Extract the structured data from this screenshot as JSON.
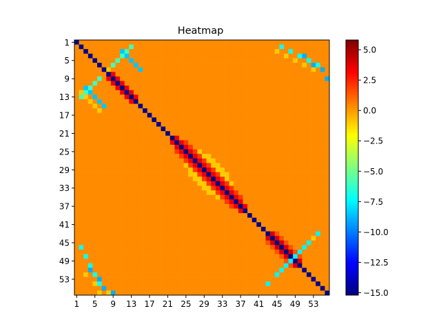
{
  "chart_data": {
    "type": "heatmap",
    "title": "Heatmap",
    "xlabel": "",
    "ylabel": "",
    "size": 56,
    "x_tick_labels": [
      "1",
      "5",
      "9",
      "13",
      "17",
      "21",
      "25",
      "29",
      "33",
      "37",
      "41",
      "45",
      "49",
      "53"
    ],
    "y_tick_labels": [
      "1",
      "5",
      "9",
      "13",
      "17",
      "21",
      "25",
      "29",
      "33",
      "37",
      "41",
      "45",
      "49",
      "53"
    ],
    "colorbar": {
      "colormap": "jet",
      "vmin": -15.2,
      "vmax": 5.8,
      "ticks": [
        5.0,
        2.5,
        0.0,
        -2.5,
        -5.0,
        -7.5,
        -10.0,
        -12.5,
        -15.0
      ],
      "tick_labels": [
        "5.0",
        "2.5",
        "0.0",
        "−2.5",
        "−5.0",
        "−7.5",
        "−10.0",
        "−12.5",
        "−15.0"
      ]
    },
    "background_value": 0.3,
    "diagonal_value": -15.0,
    "structure": {
      "upper_diagonal_band": {
        "rows": [
          7,
          12
        ],
        "value": 3.5
      },
      "central_block": {
        "rows": [
          21,
          37
        ],
        "peak_value": 3.5,
        "halo_value": -1.0
      },
      "lower_block": {
        "rows": [
          42,
          49
        ],
        "peak_value": 4.0
      },
      "anti_diagonal_arcs": [
        {
          "cells": [
            [
              1,
              12
            ],
            [
              2,
              11
            ],
            [
              3,
              10
            ],
            [
              4,
              9
            ],
            [
              5,
              8
            ]
          ],
          "value": -6.0
        },
        {
          "cells": [
            [
              10,
              2
            ],
            [
              11,
              3
            ],
            [
              12,
              4
            ],
            [
              13,
              5
            ],
            [
              14,
              6
            ]
          ],
          "value": -8.5
        },
        {
          "cells": [
            [
              1,
              45
            ],
            [
              2,
              47
            ],
            [
              3,
              49
            ],
            [
              4,
              51
            ],
            [
              5,
              53
            ]
          ],
          "value": -7.0
        },
        {
          "cells": [
            [
              42,
              53
            ],
            [
              44,
              51
            ],
            [
              46,
              49
            ],
            [
              48,
              47
            ],
            [
              50,
              45
            ]
          ],
          "value": -7.5
        },
        {
          "cells": [
            [
              50,
              3
            ],
            [
              52,
              5
            ],
            [
              54,
              6
            ],
            [
              55,
              8
            ]
          ],
          "value": -9.0
        }
      ]
    }
  }
}
